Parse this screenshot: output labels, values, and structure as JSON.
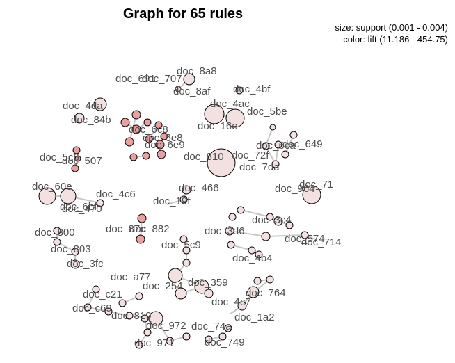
{
  "title": "Graph for 65 rules",
  "legend": {
    "size": "size: support (0.001 - 0.004)",
    "color": "color: lift (11.186 - 454.75)"
  },
  "labels": [
    {
      "t": "doc_691"
    },
    {
      "t": "doc_707"
    },
    {
      "t": "doc_8a8"
    },
    {
      "t": "doc_8af"
    },
    {
      "t": "doc_4bf"
    },
    {
      "t": "doc_4ac"
    },
    {
      "t": "doc_16e"
    },
    {
      "t": "doc_5be"
    },
    {
      "t": "doc_4da"
    },
    {
      "t": "doc_84b"
    },
    {
      "t": "doc_6c8"
    },
    {
      "t": "doc_6e9"
    },
    {
      "t": "doc_6e8"
    },
    {
      "t": "doc_6ca"
    },
    {
      "t": "doc_649"
    },
    {
      "t": "doc_72f"
    },
    {
      "t": "doc_810"
    },
    {
      "t": "doc_7da"
    },
    {
      "t": "doc_5c6"
    },
    {
      "t": "doc_507"
    },
    {
      "t": "doc_60e"
    },
    {
      "t": "doc_6bf"
    },
    {
      "t": "doc_4c6"
    },
    {
      "t": "doc_470"
    },
    {
      "t": "doc_466"
    },
    {
      "t": "doc_19f"
    },
    {
      "t": "doc_964"
    },
    {
      "t": "doc_71"
    },
    {
      "t": "doc_3c4"
    },
    {
      "t": "doc_3d6"
    },
    {
      "t": "doc_574"
    },
    {
      "t": "doc_714"
    },
    {
      "t": "doc_800"
    },
    {
      "t": "doc_803"
    },
    {
      "t": "doc_3fc"
    },
    {
      "t": "doc_87c"
    },
    {
      "t": "doc_882"
    },
    {
      "t": "doc_5c9"
    },
    {
      "t": "doc_4b4"
    },
    {
      "t": "doc_a77"
    },
    {
      "t": "doc_254"
    },
    {
      "t": "doc_359"
    },
    {
      "t": "doc_764"
    },
    {
      "t": "doc_c21"
    },
    {
      "t": "doc_c69"
    },
    {
      "t": "doc_4c7"
    },
    {
      "t": "doc_1a2"
    },
    {
      "t": "doc_819"
    },
    {
      "t": "doc_972"
    },
    {
      "t": "doc_74a"
    },
    {
      "t": "doc_971"
    },
    {
      "t": "doc_749"
    }
  ],
  "colors": {
    "rule_high_lift": "#e8a0a0",
    "rule_low_lift": "#f3e0e0",
    "edge": "#c8c8c8",
    "node_stroke": "#000000",
    "label": "#4d4d4d"
  }
}
